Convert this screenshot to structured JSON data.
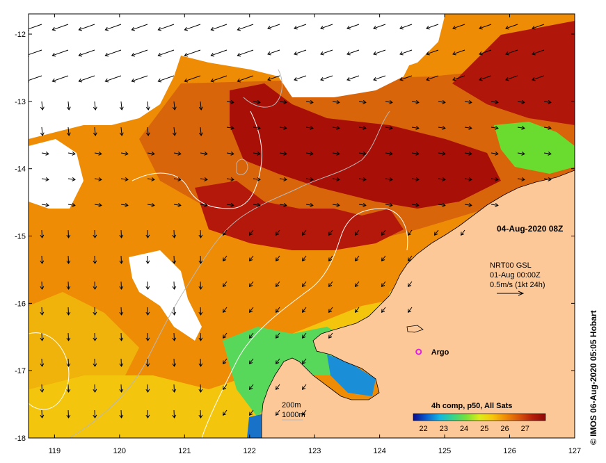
{
  "map": {
    "lon_range": [
      118.6,
      127.0
    ],
    "lat_range": [
      -18.0,
      -11.7
    ],
    "lon_ticks": [
      "119",
      "120",
      "121",
      "122",
      "123",
      "124",
      "125",
      "126",
      "127"
    ],
    "lat_ticks": [
      "-12",
      "-13",
      "-14",
      "-15",
      "-16",
      "-17",
      "-18"
    ],
    "timestamp": "04-Aug-2020 08Z",
    "current": {
      "line1": "NRT00 GSL",
      "line2": "01-Aug 00:00Z",
      "line3": "0.5m/s (1kt 24h)"
    },
    "argo_label": "Argo",
    "argo_position": {
      "lon": 124.6,
      "lat": -16.72
    },
    "bathy": {
      "line1": "200m",
      "line2": "1000m"
    },
    "colorbar": {
      "title": "4h comp, p50, All Sats",
      "ticks": [
        "22",
        "23",
        "24",
        "25",
        "26",
        "27"
      ],
      "range": [
        21.5,
        28.0
      ],
      "colors": [
        "#0b0b8f",
        "#0a5fd0",
        "#12b6e0",
        "#38d38a",
        "#78e03a",
        "#dcec1a",
        "#f7c60b",
        "#f08a06",
        "#d9550a",
        "#b51f0a",
        "#8f0707"
      ]
    },
    "credit": "© IMOS 06-Aug-2020 05:05 Hobart",
    "colors": {
      "land": "#fcc898",
      "cloud": "#ffffff",
      "sst_warm": "#d75f0a",
      "sst_hot": "#a80f07",
      "sst_mid": "#ee8c06",
      "sst_cool": "#f3c50c",
      "argo": "#e020e0"
    }
  }
}
